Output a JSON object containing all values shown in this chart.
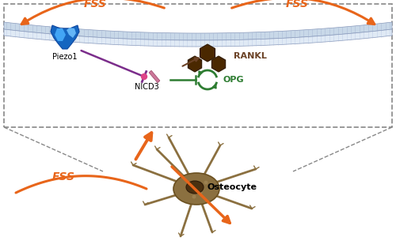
{
  "orange": "#E8651A",
  "purple": "#7B2D8B",
  "dark_brown": "#6B4226",
  "green": "#2E7D32",
  "blue_dark": "#1565C0",
  "blue_mid": "#1976D2",
  "blue_light": "#42A5F5",
  "membrane_outer_fill": "#C8D8E8",
  "membrane_inner_fill": "#E0EAF5",
  "membrane_edge": "#8899BB",
  "dashed_border": "#888888",
  "cell_body": "#8B7040",
  "cell_nucleus": "#4A3010",
  "hex_color": "#4A2800",
  "hex_edge": "#2E1800",
  "fss_label": "FSS",
  "piezo_label": "Piezo1",
  "nicd_label": "NICD3",
  "rankl_label": "RANKL",
  "opg_label": "OPG",
  "osteocyte_label": "Osteocyte"
}
